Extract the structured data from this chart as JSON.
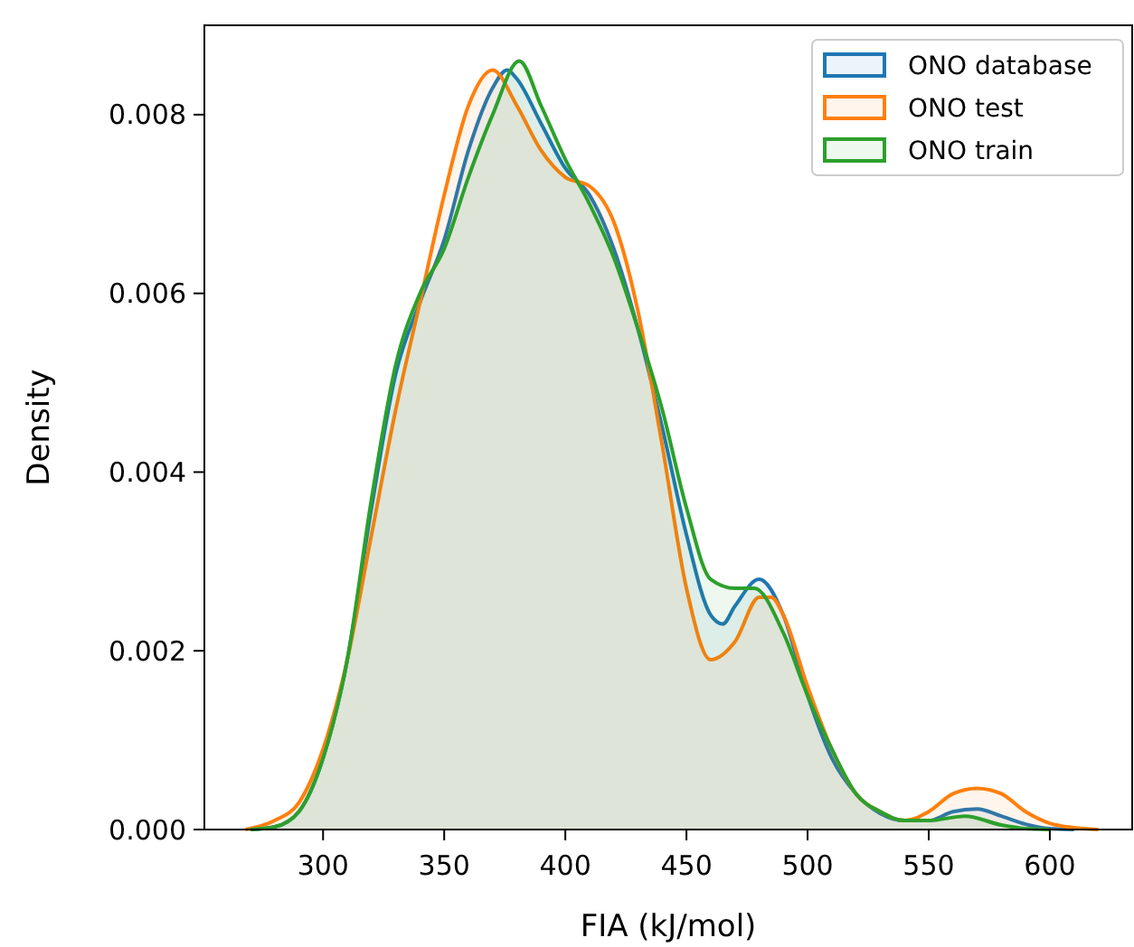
{
  "chart_data": {
    "type": "area",
    "xlabel": "FIA (kJ/mol)",
    "ylabel": "Density",
    "xlim": [
      251,
      634
    ],
    "ylim": [
      0,
      0.009
    ],
    "xticks": [
      300,
      350,
      400,
      450,
      500,
      550,
      600
    ],
    "yticks": [
      {
        "value": 0,
        "label": "0.000"
      },
      {
        "value": 0.002,
        "label": "0.002"
      },
      {
        "value": 0.004,
        "label": "0.004"
      },
      {
        "value": 0.006,
        "label": "0.006"
      },
      {
        "value": 0.008,
        "label": "0.008"
      }
    ],
    "grid": false,
    "legend": "top right",
    "series": [
      {
        "name": "ONO database",
        "color": "#1f77b4",
        "x": [
          270,
          280,
          290,
          300,
          310,
          320,
          330,
          340,
          350,
          360,
          370,
          376,
          380,
          390,
          400,
          410,
          420,
          430,
          440,
          450,
          460,
          465,
          470,
          480,
          490,
          500,
          510,
          520,
          530,
          540,
          550,
          560,
          570,
          580,
          590,
          600,
          610
        ],
        "values": [
          0,
          3e-05,
          0.0002,
          0.0008,
          0.0019,
          0.0036,
          0.0051,
          0.0059,
          0.0066,
          0.0076,
          0.0083,
          0.0085,
          0.0084,
          0.0079,
          0.0074,
          0.0071,
          0.0065,
          0.0056,
          0.0045,
          0.0033,
          0.0024,
          0.0023,
          0.0025,
          0.0028,
          0.0024,
          0.0015,
          0.0008,
          0.0004,
          0.00018,
          0.0001,
          0.0001,
          0.0002,
          0.00023,
          0.00015,
          6e-05,
          1e-05,
          0
        ]
      },
      {
        "name": "ONO test",
        "color": "#ff7f0e",
        "x": [
          268,
          280,
          290,
          300,
          310,
          320,
          330,
          340,
          350,
          360,
          370,
          380,
          390,
          400,
          410,
          420,
          430,
          440,
          450,
          460,
          470,
          480,
          485,
          490,
          500,
          510,
          520,
          530,
          540,
          550,
          560,
          570,
          580,
          590,
          600,
          610,
          620
        ],
        "values": [
          0,
          0.0001,
          0.0003,
          0.0009,
          0.0019,
          0.0033,
          0.0047,
          0.0059,
          0.0071,
          0.0081,
          0.0085,
          0.0081,
          0.0076,
          0.0073,
          0.0072,
          0.0068,
          0.0058,
          0.0043,
          0.0027,
          0.0019,
          0.0021,
          0.0026,
          0.0026,
          0.0024,
          0.0016,
          0.0009,
          0.0004,
          0.0002,
          0.0001,
          0.0002,
          0.0004,
          0.00046,
          0.0004,
          0.0002,
          7e-05,
          2e-05,
          0
        ]
      },
      {
        "name": "ONO train",
        "color": "#2ca02c",
        "x": [
          270,
          280,
          290,
          300,
          310,
          320,
          330,
          340,
          350,
          360,
          370,
          381,
          390,
          400,
          410,
          420,
          430,
          440,
          450,
          460,
          470,
          478,
          490,
          500,
          510,
          520,
          530,
          540,
          550,
          565,
          580,
          590,
          600
        ],
        "values": [
          0,
          3e-05,
          0.0002,
          0.0008,
          0.0019,
          0.0037,
          0.0052,
          0.006,
          0.0065,
          0.0073,
          0.008,
          0.0086,
          0.0081,
          0.0075,
          0.007,
          0.0064,
          0.0056,
          0.0047,
          0.0036,
          0.0028,
          0.0027,
          0.0027,
          0.0022,
          0.0015,
          0.0009,
          0.0004,
          0.0002,
          0.0001,
          0.0001,
          0.00015,
          5e-05,
          1e-05,
          0
        ]
      }
    ]
  }
}
